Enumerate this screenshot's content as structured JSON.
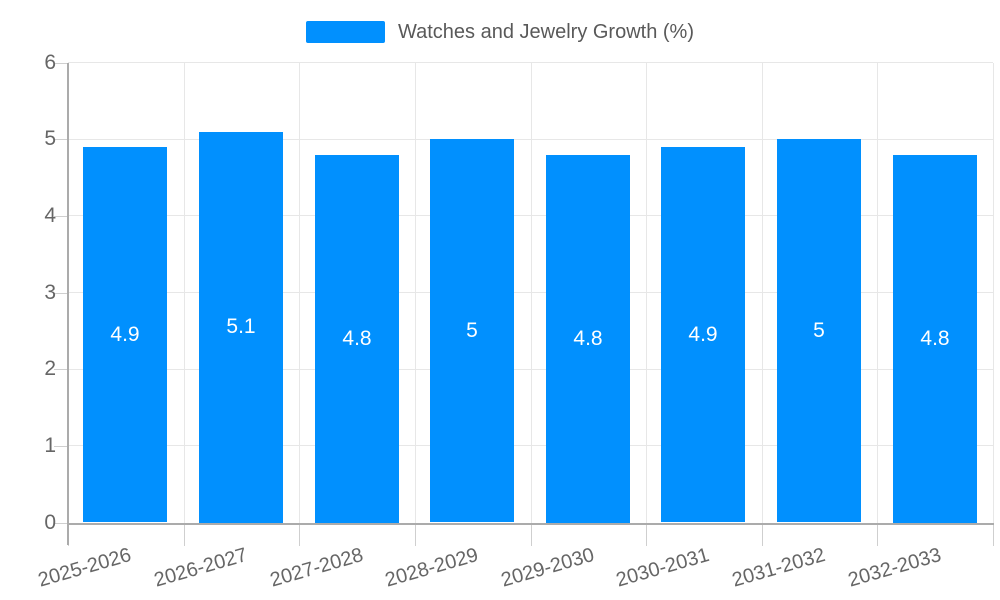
{
  "chart_data": {
    "type": "bar",
    "title": "Watches and Jewelry Growth (%)",
    "legend": [
      "Watches and Jewelry Growth (%)"
    ],
    "legend_position": "top",
    "categories": [
      "2025-2026",
      "2026-2027",
      "2027-2028",
      "2028-2029",
      "2029-2030",
      "2030-2031",
      "2031-2032",
      "2032-2033"
    ],
    "values": [
      4.9,
      5.1,
      4.8,
      5,
      4.8,
      4.9,
      5,
      4.8
    ],
    "value_labels": [
      "4.9",
      "5.1",
      "4.8",
      "5",
      "4.8",
      "4.9",
      "5",
      "4.8"
    ],
    "xlabel": "",
    "ylabel": "",
    "ylim": [
      0,
      6
    ],
    "yticks": [
      0,
      1,
      2,
      3,
      4,
      5,
      6
    ],
    "grid": true,
    "bar_color": "#0190FE",
    "value_label_color": "#FFFFFF",
    "axis_text_color": "#666666",
    "legend_text_color": "#595959",
    "grid_color": "#E7E7E7",
    "axis_line_color": "#ABABAB",
    "background_color": "#FFFFFF"
  }
}
